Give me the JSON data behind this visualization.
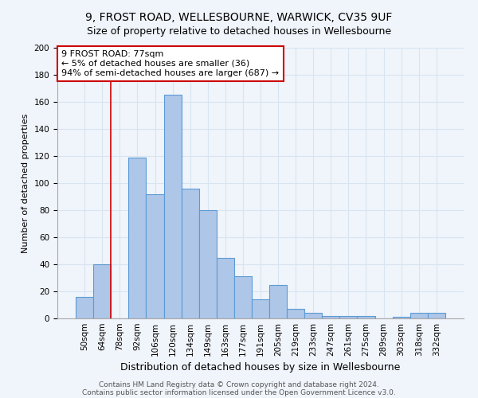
{
  "title1": "9, FROST ROAD, WELLESBOURNE, WARWICK, CV35 9UF",
  "title2": "Size of property relative to detached houses in Wellesbourne",
  "xlabel": "Distribution of detached houses by size in Wellesbourne",
  "ylabel": "Number of detached properties",
  "categories": [
    "50sqm",
    "64sqm",
    "78sqm",
    "92sqm",
    "106sqm",
    "120sqm",
    "134sqm",
    "149sqm",
    "163sqm",
    "177sqm",
    "191sqm",
    "205sqm",
    "219sqm",
    "233sqm",
    "247sqm",
    "261sqm",
    "275sqm",
    "289sqm",
    "303sqm",
    "318sqm",
    "332sqm"
  ],
  "values": [
    16,
    40,
    0,
    119,
    92,
    165,
    96,
    80,
    45,
    31,
    14,
    25,
    7,
    4,
    2,
    2,
    2,
    0,
    1,
    4,
    4
  ],
  "bar_color": "#aec6e8",
  "bar_edge_color": "#5b9bd5",
  "vline_color": "#cc0000",
  "annotation_text": "9 FROST ROAD: 77sqm\n← 5% of detached houses are smaller (36)\n94% of semi-detached houses are larger (687) →",
  "annotation_box_color": "#ffffff",
  "annotation_box_edge": "#cc0000",
  "ylim": [
    0,
    200
  ],
  "yticks": [
    0,
    20,
    40,
    60,
    80,
    100,
    120,
    140,
    160,
    180,
    200
  ],
  "footer1": "Contains HM Land Registry data © Crown copyright and database right 2024.",
  "footer2": "Contains public sector information licensed under the Open Government Licence v3.0.",
  "bg_color": "#f0f4fb",
  "grid_color": "#d8e4f0",
  "title1_fontsize": 10,
  "title2_fontsize": 9,
  "xlabel_fontsize": 9,
  "ylabel_fontsize": 8,
  "tick_fontsize": 7.5,
  "footer_fontsize": 6.5,
  "annotation_fontsize": 8
}
